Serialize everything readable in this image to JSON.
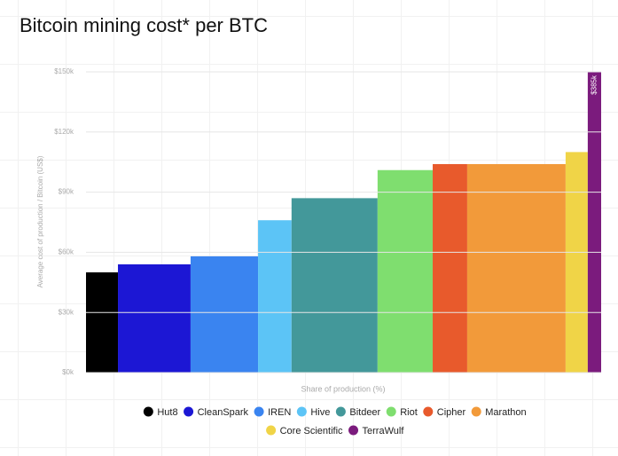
{
  "chart_data": {
    "type": "variable-width-bar",
    "title": "Bitcoin mining cost* per BTC",
    "x_label": "Share of production (%)",
    "y_label": "Average cost of production / Bitcoin (US$)",
    "categories": [
      "Hut8",
      "CleanSpark",
      "IREN",
      "Hive",
      "Bitdeer",
      "Riot",
      "Cipher",
      "Marathon",
      "Core Scientific",
      "TerraWulf"
    ],
    "values": [
      50,
      54,
      58,
      76,
      87,
      101,
      104,
      104,
      110,
      385
    ],
    "value_labels": [
      null,
      null,
      null,
      null,
      null,
      null,
      null,
      null,
      null,
      "$385k"
    ],
    "widths": [
      6.2,
      14.1,
      13.1,
      6.5,
      16.7,
      10.7,
      6.7,
      19.1,
      4.3,
      2.6
    ],
    "colors": [
      "#000000",
      "#1c17d4",
      "#3a84f0",
      "#5cc4f6",
      "#43989a",
      "#7fde6f",
      "#e85a2c",
      "#f29a3a",
      "#f0d447",
      "#7b1b7d"
    ],
    "xlim": [
      0,
      100
    ],
    "ylim": [
      0,
      150
    ],
    "yticks": [
      {
        "value": 0,
        "label": "$0k"
      },
      {
        "value": 30,
        "label": "$30k"
      },
      {
        "value": 60,
        "label": "$60k"
      },
      {
        "value": 90,
        "label": "$90k"
      },
      {
        "value": 120,
        "label": "$120k"
      },
      {
        "value": 150,
        "label": "$150k"
      }
    ],
    "grid": true,
    "legend": "bottom"
  }
}
